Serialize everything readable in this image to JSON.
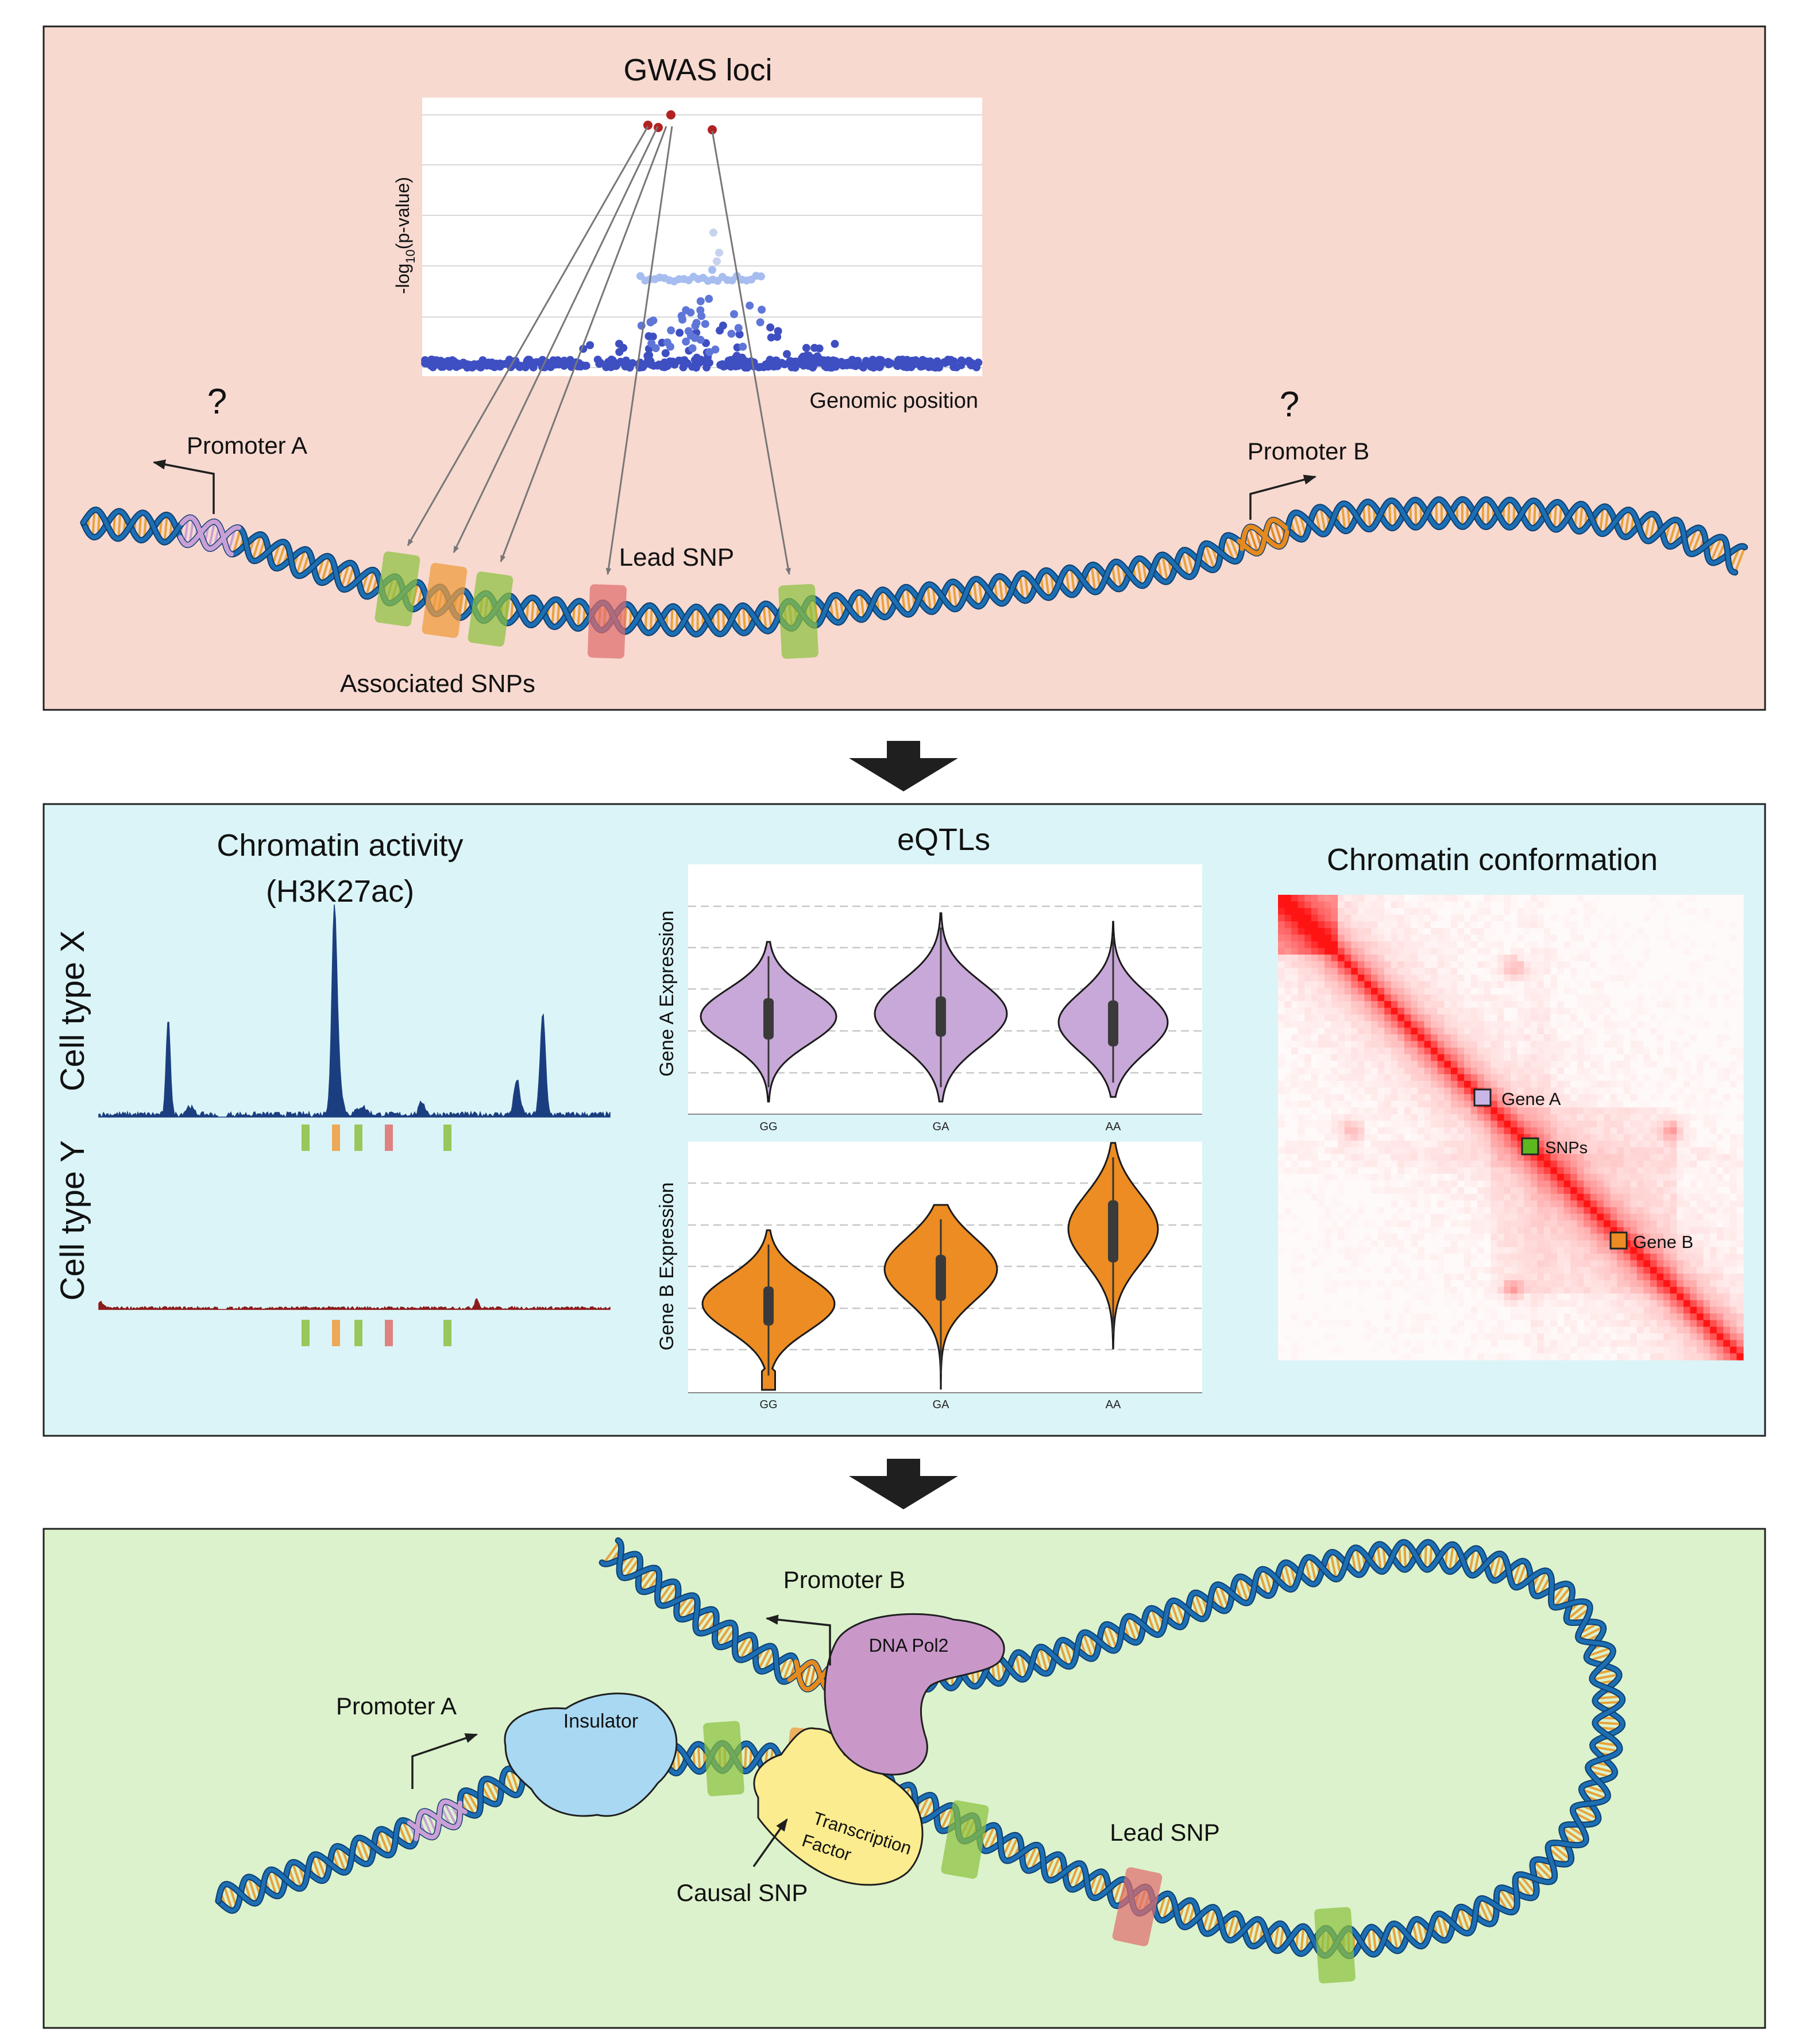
{
  "colors": {
    "panel1_bg": "#f7d9d0",
    "panel2_bg": "#dbf4f7",
    "panel3_bg": "#dcf2cc",
    "dna_backbone": "#1d6fb4",
    "dna_rung": "#e8a23a",
    "snp_green": "#8cc03f",
    "snp_orange": "#ef9b3d",
    "snp_red": "#e06c6c",
    "promoter_a": "#c9a0d6",
    "promoter_b": "#e58a1f",
    "violin_a": "#c8a8d8",
    "violin_b": "#ec8c22",
    "track_x": "#1b3e80",
    "track_y": "#8c1a1a",
    "hic": "#ff1a1a",
    "insulator": "#a9d8f3",
    "tf": "#fbec8f",
    "pol2": "#c998c9",
    "arrow": "#1f1f1f"
  },
  "panel1": {
    "gwas_title": "GWAS loci",
    "ylabel_prefix": "-log",
    "ylabel_sub": "10",
    "ylabel_suffix": "(p-value)",
    "xlabel": "Genomic position",
    "promoter_a": "Promoter A",
    "promoter_b": "Promoter B",
    "question": "?",
    "lead_snp": "Lead SNP",
    "associated_snps": "Associated SNPs"
  },
  "panel2": {
    "chromatin_activity_title": "Chromatin activity",
    "chromatin_activity_sub": "(H3K27ac)",
    "cell_type_x": "Cell type X",
    "cell_type_y": "Cell type Y",
    "eqtl_title": "eQTLs",
    "gene_a_ylabel": "Gene A Expression",
    "gene_b_ylabel": "Gene B Expression",
    "genotypes": [
      "GG",
      "GA",
      "AA"
    ],
    "conformation_title": "Chromatin conformation",
    "gene_a_label": "Gene A",
    "snps_label": "SNPs",
    "gene_b_label": "Gene B"
  },
  "panel3": {
    "promoter_b": "Promoter B",
    "promoter_a": "Promoter A",
    "pol2": "DNA Pol2",
    "insulator": "Insulator",
    "tf_line1": "Transcription",
    "tf_line2": "Factor",
    "causal_snp": "Causal SNP",
    "lead_snp": "Lead SNP"
  }
}
